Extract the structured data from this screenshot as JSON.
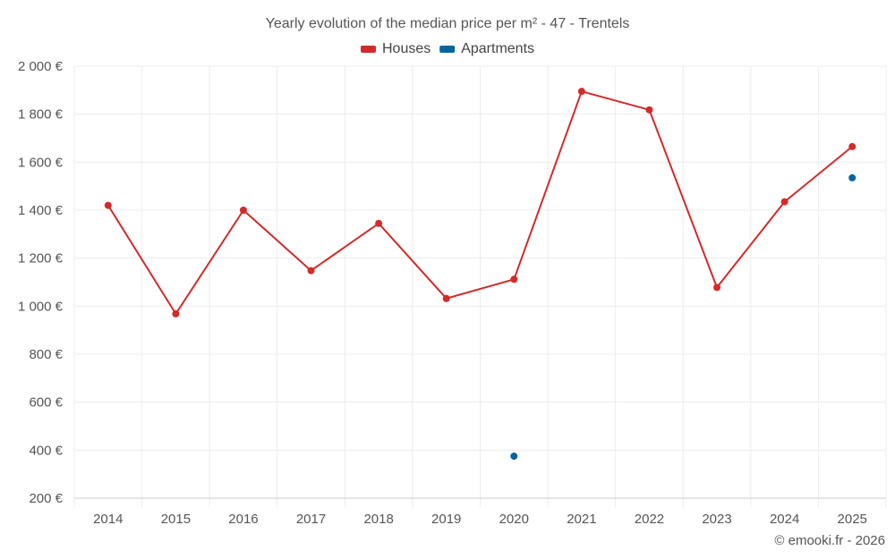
{
  "chart_data": {
    "type": "line",
    "title": "Yearly evolution of the median price per m² - 47 - Trentels",
    "categories": [
      "2014",
      "2015",
      "2016",
      "2017",
      "2018",
      "2019",
      "2020",
      "2021",
      "2022",
      "2023",
      "2024",
      "2025"
    ],
    "series": [
      {
        "name": "Houses",
        "color": "#d32a2a",
        "values": [
          1420,
          968,
          1400,
          1148,
          1345,
          1032,
          1112,
          1895,
          1818,
          1078,
          1435,
          1665
        ]
      },
      {
        "name": "Apartments",
        "color": "#05669e",
        "values": [
          null,
          null,
          null,
          null,
          null,
          null,
          375,
          null,
          null,
          null,
          null,
          1535
        ]
      }
    ],
    "ylim": [
      200,
      2000
    ],
    "yticks": [
      200,
      400,
      600,
      800,
      1000,
      1200,
      1400,
      1600,
      1800,
      2000
    ],
    "ytick_labels": [
      "200 €",
      "400 €",
      "600 €",
      "800 €",
      "1 000 €",
      "1 200 €",
      "1 400 €",
      "1 600 €",
      "1 800 €",
      "2 000 €"
    ],
    "xlabel": "",
    "ylabel": "",
    "grid": true,
    "legend_position": "top-center"
  },
  "credit": "© emooki.fr - 2026"
}
